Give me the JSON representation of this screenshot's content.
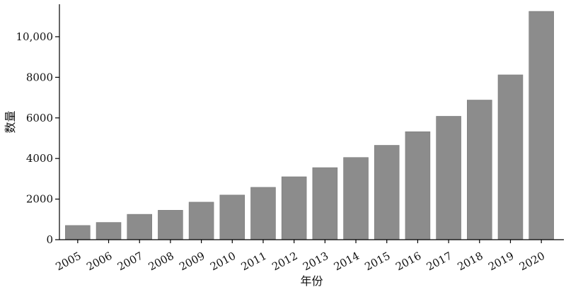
{
  "chart_data": {
    "type": "bar",
    "xlabel": "年份",
    "ylabel": "数量",
    "categories": [
      "2005",
      "2006",
      "2007",
      "2008",
      "2009",
      "2010",
      "2011",
      "2012",
      "2013",
      "2014",
      "2015",
      "2016",
      "2017",
      "2018",
      "2019",
      "2020"
    ],
    "values": [
      700,
      850,
      1250,
      1450,
      1850,
      2200,
      2580,
      3100,
      3550,
      4050,
      4650,
      5320,
      6080,
      6880,
      8120,
      11250
    ],
    "ylim": [
      0,
      11600
    ],
    "yticks": [
      0,
      2000,
      4000,
      6000,
      8000,
      10000
    ],
    "ytick_labels": [
      "0",
      "2000",
      "4000",
      "6000",
      "8000",
      "10,000"
    ],
    "bar_color": "#8c8c8c",
    "grid": false
  }
}
